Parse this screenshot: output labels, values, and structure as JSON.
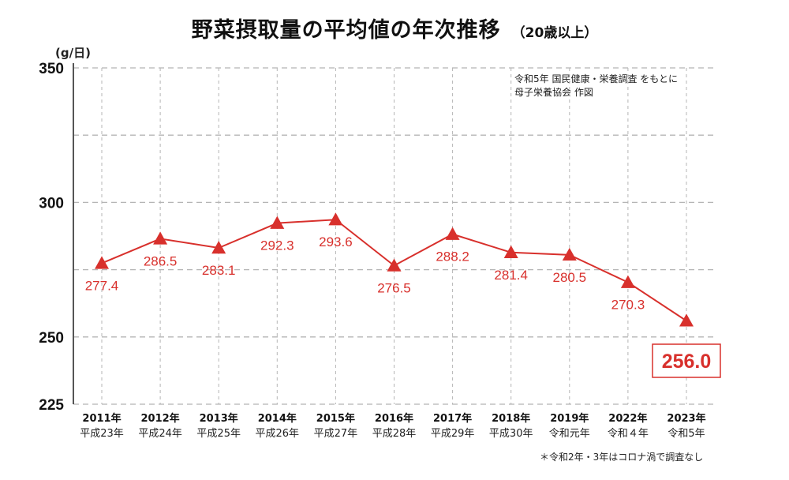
{
  "title": "野菜摂取量の平均値の年次推移",
  "subtitle": "（20歳以上）",
  "unit_label": "(g/日)",
  "source_lines": [
    "令和5年 国民健康・栄養調査 をもとに",
    "母子栄養協会 作図"
  ],
  "footnote": "＊令和2年・3年はコロナ渦で調査なし",
  "colors": {
    "series": "#d8302c",
    "grid": "#b5b5b5",
    "axis": "#555555"
  },
  "chart_data": {
    "type": "line",
    "ylim": [
      225,
      350
    ],
    "yticks": [
      {
        "value": 350,
        "label": "350"
      },
      {
        "value": 300,
        "label": "300"
      },
      {
        "value": 250,
        "label": "250"
      },
      {
        "value": 225,
        "label": "225"
      }
    ],
    "gridlines": [
      350,
      325,
      300,
      275,
      250,
      225
    ],
    "grid": true,
    "categories": [
      {
        "year": "2011年",
        "era": "平成23年"
      },
      {
        "year": "2012年",
        "era": "平成24年"
      },
      {
        "year": "2013年",
        "era": "平成25年"
      },
      {
        "year": "2014年",
        "era": "平成26年"
      },
      {
        "year": "2015年",
        "era": "平成27年"
      },
      {
        "year": "2016年",
        "era": "平成28年"
      },
      {
        "year": "2017年",
        "era": "平成29年"
      },
      {
        "year": "2018年",
        "era": "平成30年"
      },
      {
        "year": "2019年",
        "era": "令和元年"
      },
      {
        "year": "2022年",
        "era": "令和４年"
      },
      {
        "year": "2023年",
        "era": "令和5年"
      }
    ],
    "values": [
      277.4,
      286.5,
      283.1,
      292.3,
      293.6,
      276.5,
      288.2,
      281.4,
      280.5,
      270.3,
      256.0
    ],
    "labels": [
      "277.4",
      "286.5",
      "283.1",
      "292.3",
      "293.6",
      "276.5",
      "288.2",
      "281.4",
      "280.5",
      "270.3",
      "256.0"
    ],
    "marker": "triangle",
    "highlight_index": 10
  }
}
